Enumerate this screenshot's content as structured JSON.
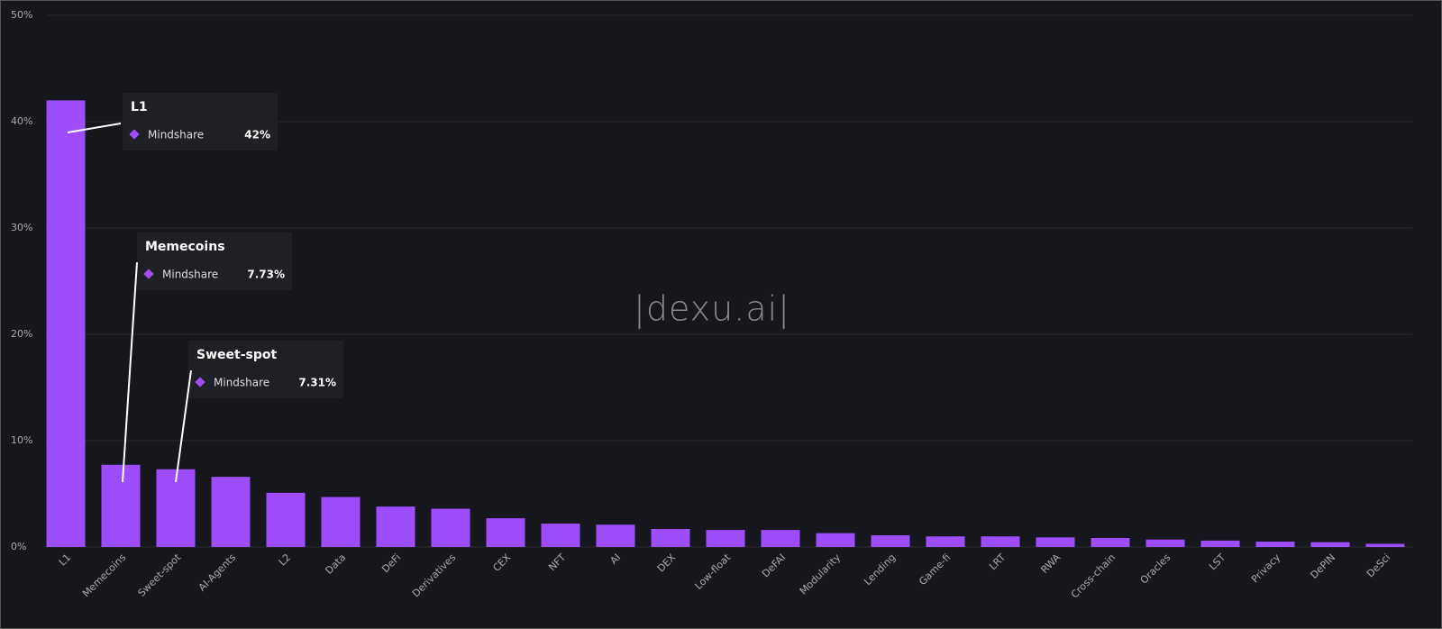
{
  "chart_data": {
    "type": "bar",
    "categories": [
      "L1",
      "Memecoins",
      "Sweet-spot",
      "AI-Agents",
      "L2",
      "Data",
      "DeFi",
      "Derivatives",
      "CEX",
      "NFT",
      "AI",
      "DEX",
      "Low-float",
      "DeFAI",
      "Modularity",
      "Lending",
      "Game-fi",
      "LRT",
      "RWA",
      "Cross-chain",
      "Oracles",
      "LST",
      "Privacy",
      "DePIN",
      "DeSci"
    ],
    "series": [
      {
        "name": "Mindshare",
        "color": "#9d4dfc",
        "values": [
          42,
          7.73,
          7.31,
          6.6,
          5.1,
          4.7,
          3.8,
          3.6,
          2.7,
          2.2,
          2.1,
          1.7,
          1.6,
          1.6,
          1.3,
          1.1,
          1.0,
          1.0,
          0.9,
          0.85,
          0.7,
          0.6,
          0.5,
          0.45,
          0.3
        ],
        "value_labels": [
          "42%",
          "7.73%",
          "7.31%",
          null,
          null,
          null,
          null,
          null,
          null,
          null,
          null,
          null,
          null,
          null,
          null,
          null,
          null,
          null,
          null,
          null,
          null,
          null,
          null,
          null,
          null
        ]
      }
    ],
    "ylim": [
      0,
      50
    ],
    "yticks": [
      {
        "value": 0,
        "label": "0%"
      },
      {
        "value": 10,
        "label": "10%"
      },
      {
        "value": 20,
        "label": "20%"
      },
      {
        "value": 30,
        "label": "30%"
      },
      {
        "value": 40,
        "label": "40%"
      },
      {
        "value": 50,
        "label": "50%"
      }
    ],
    "grid": true,
    "watermark": "|dexu.ai|"
  }
}
